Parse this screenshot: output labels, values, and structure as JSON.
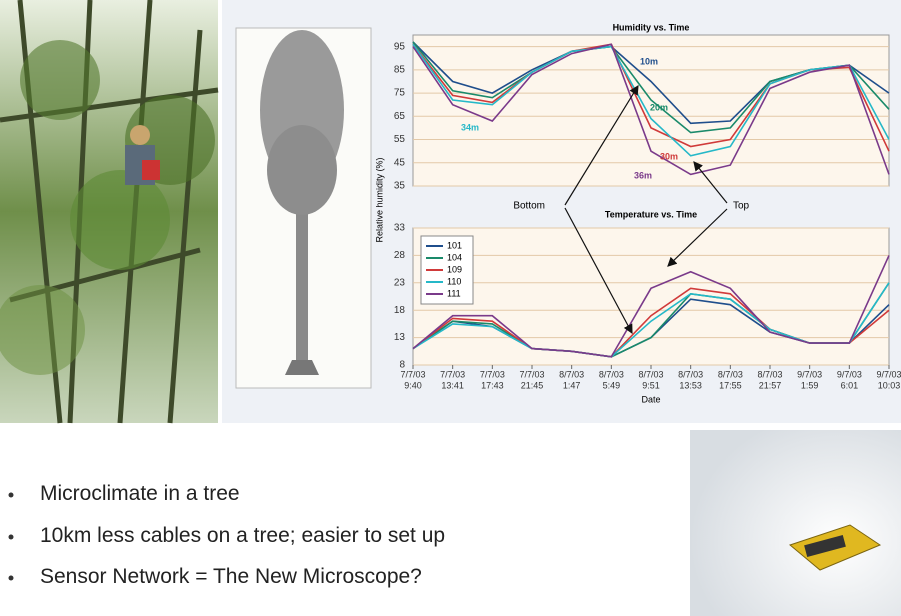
{
  "slide": {
    "bullets": [
      "Microclimate in a tree",
      "10km less cables on a tree; easier to set up",
      "Sensor Network = The New Microscope?"
    ]
  },
  "chart_data": [
    {
      "type": "line",
      "title": "Humidity vs. Time",
      "ylabel": "Relative humidity (%)",
      "categories": [
        null,
        null,
        null,
        null,
        null,
        null,
        null,
        null,
        null,
        null,
        null,
        null,
        null
      ],
      "ylim": [
        35,
        100
      ],
      "yticks": [
        35,
        45,
        55,
        65,
        75,
        85,
        95
      ],
      "grid": true,
      "annotations": [
        "Bottom",
        "Top"
      ],
      "series": [
        {
          "name": "10m",
          "color": "#1f4e8c",
          "values": [
            97,
            80,
            75,
            85,
            93,
            95,
            80,
            62,
            63,
            80,
            85,
            87,
            75
          ]
        },
        {
          "name": "20m",
          "color": "#1a8a6a",
          "values": [
            97,
            76,
            73,
            84,
            93,
            95,
            72,
            58,
            60,
            80,
            85,
            87,
            68
          ]
        },
        {
          "name": "30m",
          "color": "#d03a3a",
          "values": [
            96,
            74,
            71,
            84,
            93,
            96,
            60,
            52,
            55,
            79,
            85,
            86,
            50
          ]
        },
        {
          "name": "34m",
          "color": "#25b8c8",
          "values": [
            96,
            72,
            70,
            84,
            93,
            95,
            64,
            48,
            52,
            79,
            85,
            87,
            55
          ]
        },
        {
          "name": "36m",
          "color": "#7a3a8a",
          "values": [
            95,
            70,
            63,
            83,
            92,
            96,
            50,
            40,
            44,
            77,
            84,
            87,
            40
          ]
        }
      ]
    },
    {
      "type": "line",
      "title": "Temperature vs. Time",
      "xlabel": "Date",
      "categories": [
        [
          "7/7/03",
          "9:40"
        ],
        [
          "7/7/03",
          "13:41"
        ],
        [
          "7/7/03",
          "17:43"
        ],
        [
          "7/7/03",
          "21:45"
        ],
        [
          "8/7/03",
          "1:47"
        ],
        [
          "8/7/03",
          "5:49"
        ],
        [
          "8/7/03",
          "9:51"
        ],
        [
          "8/7/03",
          "13:53"
        ],
        [
          "8/7/03",
          "17:55"
        ],
        [
          "8/7/03",
          "21:57"
        ],
        [
          "9/7/03",
          "1:59"
        ],
        [
          "9/7/03",
          "6:01"
        ],
        [
          "9/7/03",
          "10:03"
        ]
      ],
      "ylim": [
        8,
        33
      ],
      "yticks": [
        8,
        13,
        18,
        23,
        28,
        33
      ],
      "grid": true,
      "legend": "upper left",
      "series": [
        {
          "name": "101",
          "color": "#1f4e8c",
          "values": [
            11,
            16,
            15,
            11,
            10.5,
            9.5,
            13,
            20,
            19,
            14,
            12,
            12,
            19
          ]
        },
        {
          "name": "104",
          "color": "#1a8a6a",
          "values": [
            11,
            16,
            15.5,
            11,
            10.5,
            9.5,
            13,
            21,
            20,
            14.5,
            12,
            12,
            23
          ]
        },
        {
          "name": "109",
          "color": "#d03a3a",
          "values": [
            11,
            16.5,
            16,
            11,
            10.5,
            9.5,
            17,
            22,
            21,
            14.5,
            12,
            12,
            18
          ]
        },
        {
          "name": "110",
          "color": "#25b8c8",
          "values": [
            11,
            15.5,
            15,
            11,
            10.5,
            9.5,
            16,
            21,
            20,
            14.5,
            12,
            12,
            23
          ]
        },
        {
          "name": "111",
          "color": "#7a3a8a",
          "values": [
            11,
            17,
            17,
            11,
            10.5,
            9.5,
            22,
            25,
            22,
            14,
            12,
            12,
            28
          ]
        }
      ]
    }
  ]
}
